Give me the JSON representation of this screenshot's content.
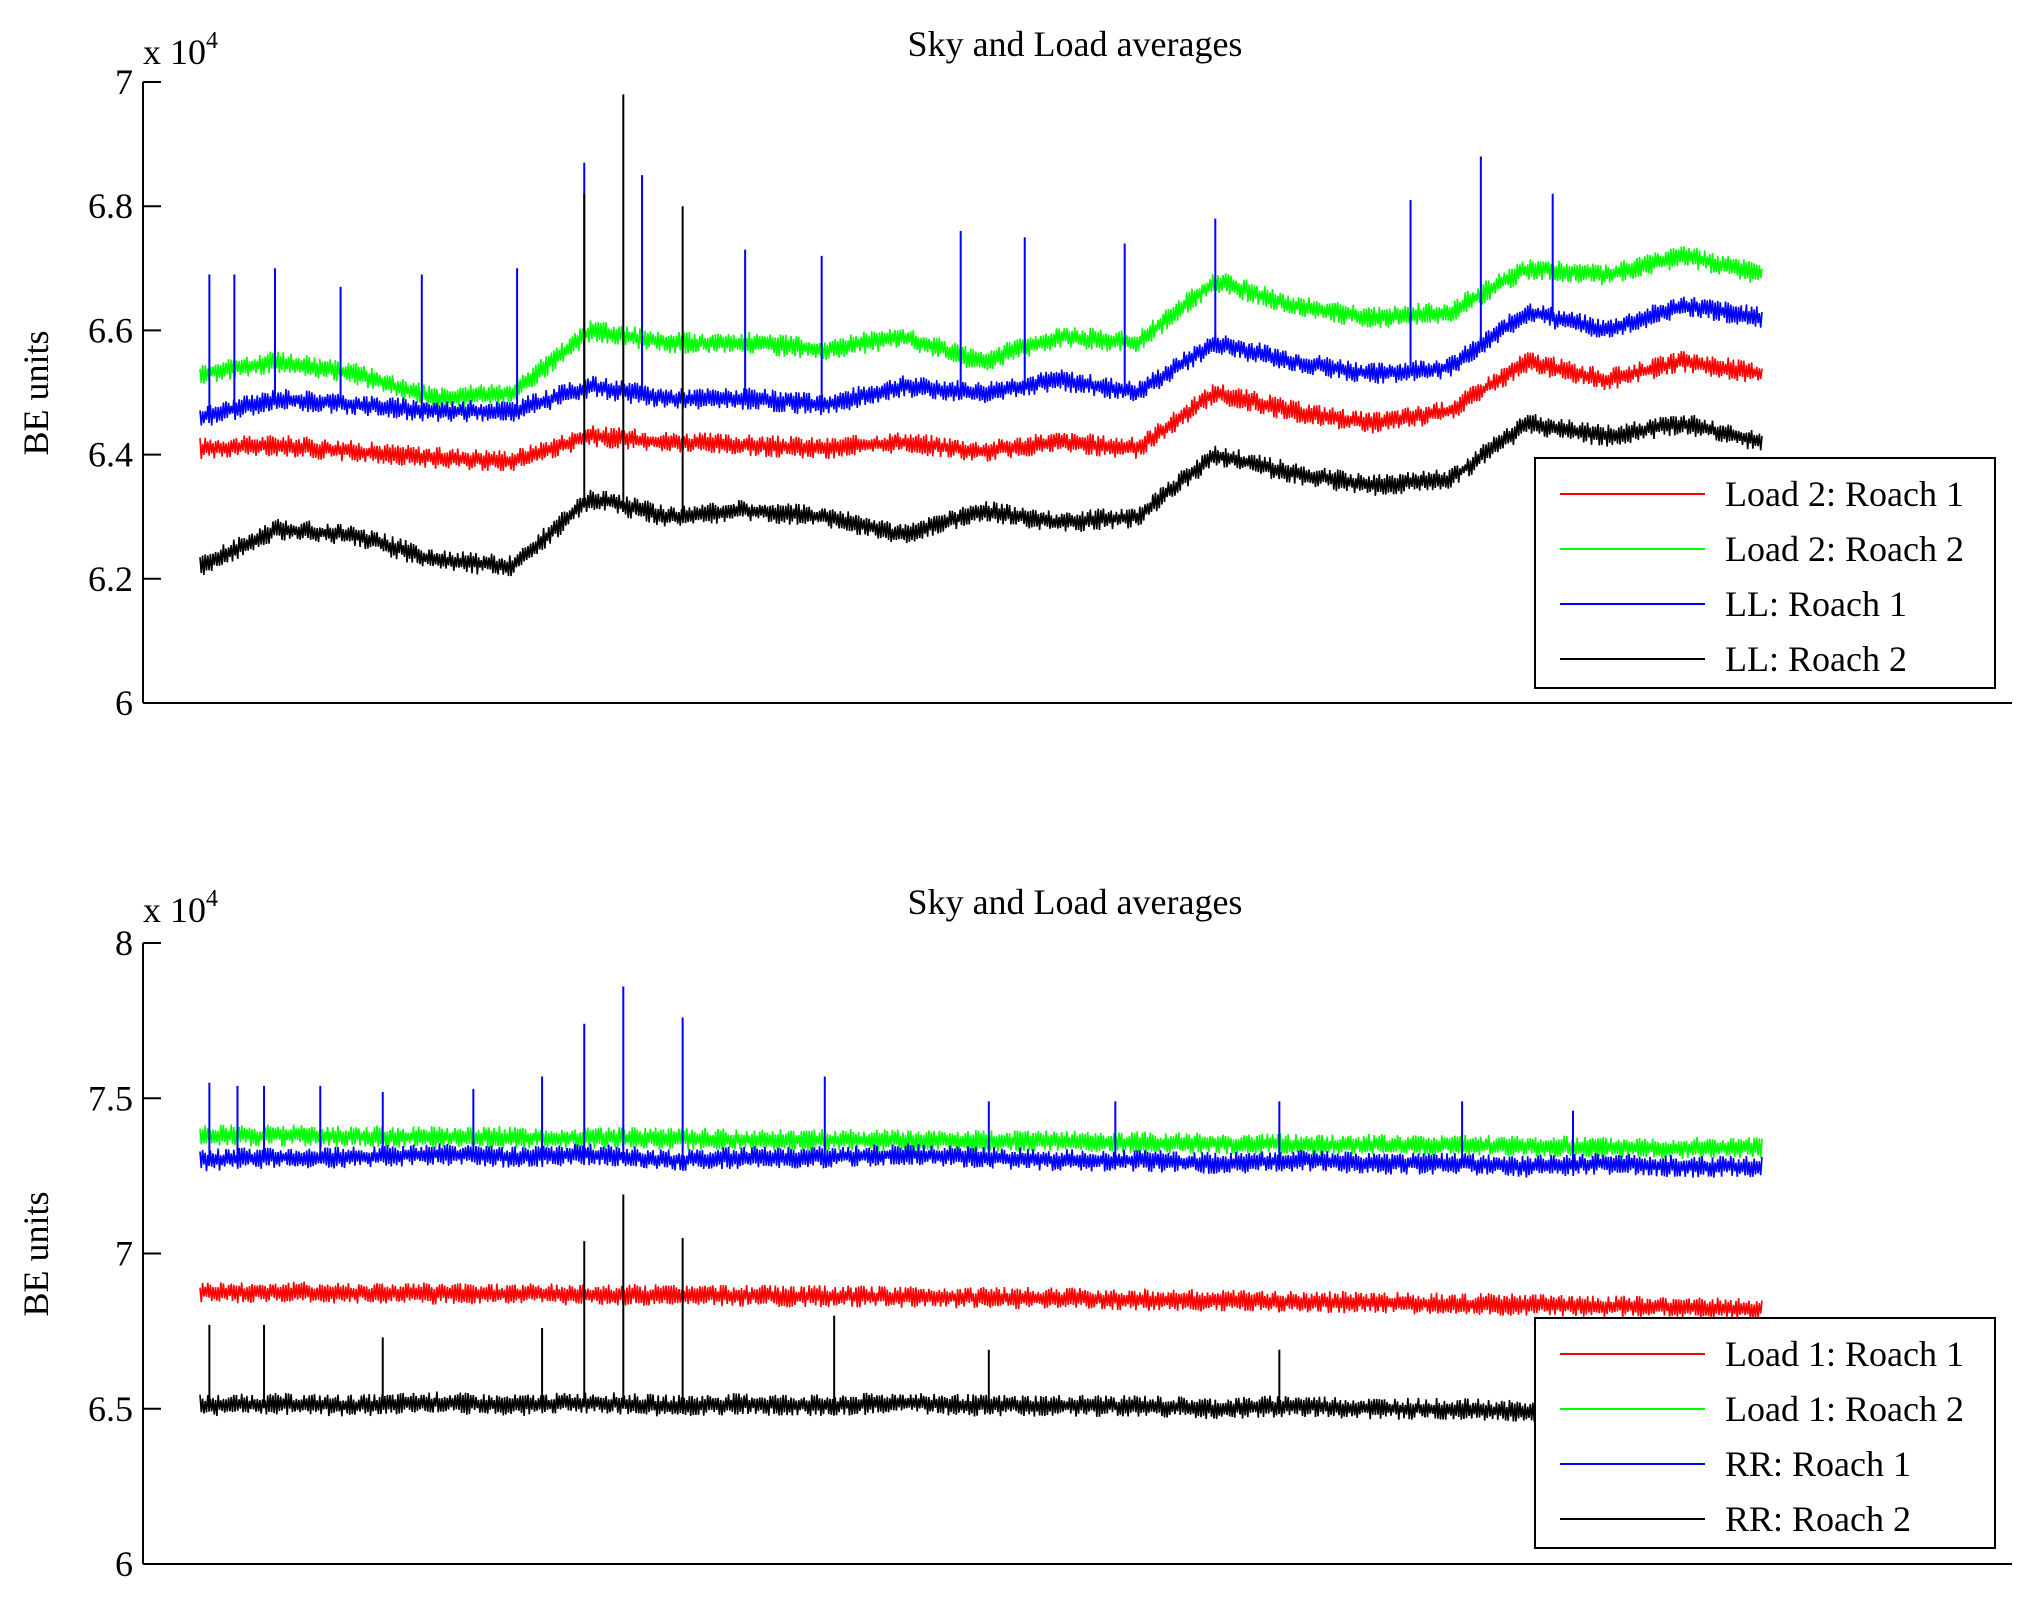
{
  "chart_data": [
    {
      "type": "line",
      "title": "Sky and Load averages",
      "xlabel": "",
      "ylabel": "BE units",
      "y_multiplier": "x 10",
      "y_multiplier_exp": "4",
      "ylim": [
        6.0,
        7.0
      ],
      "yticks": [
        6,
        6.2,
        6.4,
        6.6,
        6.8,
        7
      ],
      "ytick_labels": [
        "6",
        "6.2",
        "6.4",
        "6.6",
        "6.8",
        "7"
      ],
      "x": [
        0,
        5,
        10,
        15,
        20,
        25,
        30,
        35,
        40,
        45,
        50,
        55,
        60,
        65,
        70,
        75,
        80,
        85,
        90,
        95,
        100
      ],
      "legend": {
        "position": "bottom-right"
      },
      "series": [
        {
          "name": "Load 2: Roach 1",
          "color": "#ff0000",
          "values": [
            6.41,
            6.415,
            6.405,
            6.395,
            6.39,
            6.43,
            6.42,
            6.415,
            6.41,
            6.42,
            6.405,
            6.42,
            6.41,
            6.5,
            6.47,
            6.45,
            6.47,
            6.55,
            6.52,
            6.55,
            6.53
          ],
          "spikes": []
        },
        {
          "name": "Load 2: Roach 2",
          "color": "#00ff00",
          "values": [
            6.53,
            6.55,
            6.53,
            6.49,
            6.5,
            6.6,
            6.58,
            6.58,
            6.57,
            6.59,
            6.55,
            6.59,
            6.58,
            6.68,
            6.64,
            6.62,
            6.63,
            6.7,
            6.69,
            6.72,
            6.69
          ],
          "spikes": []
        },
        {
          "name": "LL: Roach 1",
          "color": "#0000ff",
          "values": [
            6.46,
            6.49,
            6.48,
            6.47,
            6.47,
            6.51,
            6.49,
            6.49,
            6.48,
            6.51,
            6.5,
            6.52,
            6.5,
            6.58,
            6.55,
            6.53,
            6.54,
            6.63,
            6.6,
            6.64,
            6.62
          ],
          "spikes": [
            [
              0.6,
              6.69
            ],
            [
              2.2,
              6.69
            ],
            [
              4.8,
              6.7
            ],
            [
              9.0,
              6.67
            ],
            [
              14.2,
              6.69
            ],
            [
              20.3,
              6.7
            ],
            [
              24.6,
              6.87
            ],
            [
              28.3,
              6.85
            ],
            [
              34.9,
              6.73
            ],
            [
              39.8,
              6.72
            ],
            [
              48.7,
              6.76
            ],
            [
              52.8,
              6.75
            ],
            [
              59.2,
              6.74
            ],
            [
              65.0,
              6.78
            ],
            [
              77.5,
              6.81
            ],
            [
              82.0,
              6.88
            ],
            [
              86.6,
              6.82
            ]
          ]
        },
        {
          "name": "LL: Roach 2",
          "color": "#000000",
          "values": [
            6.22,
            6.28,
            6.27,
            6.23,
            6.22,
            6.33,
            6.3,
            6.31,
            6.3,
            6.27,
            6.31,
            6.29,
            6.3,
            6.4,
            6.37,
            6.35,
            6.36,
            6.45,
            6.43,
            6.45,
            6.42
          ],
          "spikes": [
            [
              24.6,
              6.82
            ],
            [
              27.1,
              6.98
            ],
            [
              30.9,
              6.8
            ]
          ]
        }
      ]
    },
    {
      "type": "line",
      "title": "Sky and Load averages",
      "xlabel": "",
      "ylabel": "BE units",
      "y_multiplier": "x 10",
      "y_multiplier_exp": "4",
      "ylim": [
        6.0,
        8.0
      ],
      "yticks": [
        6,
        6.5,
        7,
        7.5,
        8
      ],
      "ytick_labels": [
        "6",
        "6.5",
        "7",
        "7.5",
        "8"
      ],
      "x": [
        0,
        5,
        10,
        15,
        20,
        25,
        30,
        35,
        40,
        45,
        50,
        55,
        60,
        65,
        70,
        75,
        80,
        85,
        90,
        95,
        100
      ],
      "legend": {
        "position": "bottom-right"
      },
      "series": [
        {
          "name": "Load 1: Roach 1",
          "color": "#ff0000",
          "values": [
            6.875,
            6.875,
            6.873,
            6.871,
            6.869,
            6.867,
            6.866,
            6.864,
            6.862,
            6.86,
            6.858,
            6.855,
            6.852,
            6.848,
            6.845,
            6.842,
            6.838,
            6.835,
            6.83,
            6.826,
            6.82
          ],
          "spikes": []
        },
        {
          "name": "Load 1: Roach 2",
          "color": "#00ff00",
          "values": [
            7.38,
            7.38,
            7.378,
            7.376,
            7.374,
            7.372,
            7.37,
            7.368,
            7.366,
            7.364,
            7.362,
            7.36,
            7.358,
            7.355,
            7.352,
            7.35,
            7.348,
            7.345,
            7.342,
            7.34,
            7.34
          ],
          "spikes": []
        },
        {
          "name": "RR: Roach 1",
          "color": "#0000ff",
          "values": [
            7.3,
            7.31,
            7.31,
            7.32,
            7.31,
            7.32,
            7.3,
            7.31,
            7.31,
            7.32,
            7.31,
            7.3,
            7.3,
            7.29,
            7.3,
            7.29,
            7.29,
            7.28,
            7.29,
            7.28,
            7.28
          ],
          "spikes": [
            [
              0.6,
              7.55
            ],
            [
              2.4,
              7.54
            ],
            [
              4.1,
              7.54
            ],
            [
              7.7,
              7.54
            ],
            [
              11.7,
              7.52
            ],
            [
              17.5,
              7.53
            ],
            [
              21.9,
              7.57
            ],
            [
              24.6,
              7.74
            ],
            [
              27.1,
              7.86
            ],
            [
              30.9,
              7.76
            ],
            [
              40.0,
              7.57
            ],
            [
              50.5,
              7.49
            ],
            [
              58.6,
              7.49
            ],
            [
              69.1,
              7.49
            ],
            [
              80.8,
              7.49
            ],
            [
              87.9,
              7.46
            ]
          ]
        },
        {
          "name": "RR: Roach 2",
          "color": "#000000",
          "values": [
            6.51,
            6.515,
            6.51,
            6.52,
            6.51,
            6.52,
            6.51,
            6.515,
            6.51,
            6.52,
            6.51,
            6.51,
            6.51,
            6.5,
            6.51,
            6.5,
            6.5,
            6.49,
            6.49,
            6.49,
            6.49
          ],
          "spikes": [
            [
              0.6,
              6.77
            ],
            [
              4.1,
              6.77
            ],
            [
              11.7,
              6.73
            ],
            [
              21.9,
              6.76
            ],
            [
              24.6,
              7.04
            ],
            [
              27.1,
              7.19
            ],
            [
              30.9,
              7.05
            ],
            [
              40.6,
              6.8
            ],
            [
              50.5,
              6.69
            ],
            [
              69.1,
              6.69
            ]
          ]
        }
      ]
    }
  ]
}
